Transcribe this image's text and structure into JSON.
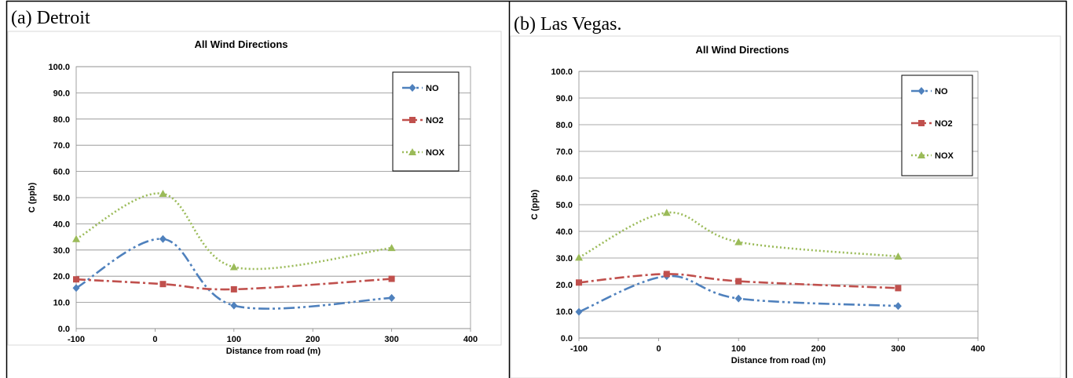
{
  "panels": [
    {
      "label": "(a) Detroit",
      "chart_data": {
        "type": "line",
        "title": "All Wind Directions",
        "xlabel": "Distance from road (m)",
        "ylabel": "C (ppb)",
        "xlim": [
          -100,
          400
        ],
        "ylim": [
          0,
          100
        ],
        "x_ticks": [
          -100,
          0,
          100,
          200,
          300,
          400
        ],
        "y_ticks": [
          "0.0",
          "10.0",
          "20.0",
          "30.0",
          "40.0",
          "50.0",
          "60.0",
          "70.0",
          "80.0",
          "90.0",
          "100.0"
        ],
        "grid": true,
        "legend_position": "top-right",
        "x": [
          -100,
          10,
          100,
          300
        ],
        "series": [
          {
            "name": "NO",
            "values": [
              15.5,
              34.2,
              8.8,
              11.7
            ],
            "color": "#4F81BD",
            "marker": "diamond",
            "dash": "dash-dot-dot"
          },
          {
            "name": "NO2",
            "values": [
              18.8,
              17.0,
              15.0,
              19.0
            ],
            "color": "#C0504D",
            "marker": "square",
            "dash": "dash-dot"
          },
          {
            "name": "NOX",
            "values": [
              34.2,
              51.5,
              23.5,
              30.8
            ],
            "color": "#9BBB59",
            "marker": "triangle",
            "dash": "dotted"
          }
        ]
      }
    },
    {
      "label": "(b) Las Vegas.",
      "chart_data": {
        "type": "line",
        "title": "All Wind Directions",
        "xlabel": "Distance from road (m)",
        "ylabel": "C (ppb)",
        "xlim": [
          -100,
          400
        ],
        "ylim": [
          0,
          100
        ],
        "x_ticks": [
          -100,
          0,
          100,
          200,
          300,
          400
        ],
        "y_ticks": [
          "0.0",
          "10.0",
          "20.0",
          "30.0",
          "40.0",
          "50.0",
          "60.0",
          "70.0",
          "80.0",
          "90.0",
          "100.0"
        ],
        "grid": true,
        "legend_position": "top-right",
        "x": [
          -100,
          10,
          100,
          300
        ],
        "series": [
          {
            "name": "NO",
            "values": [
              9.8,
              23.2,
              14.8,
              12.0
            ],
            "color": "#4F81BD",
            "marker": "diamond",
            "dash": "dash-dot-dot"
          },
          {
            "name": "NO2",
            "values": [
              20.8,
              24.0,
              21.3,
              18.7
            ],
            "color": "#C0504D",
            "marker": "square",
            "dash": "dash-dot"
          },
          {
            "name": "NOX",
            "values": [
              30.2,
              47.0,
              36.0,
              30.6
            ],
            "color": "#9BBB59",
            "marker": "triangle",
            "dash": "dotted"
          }
        ]
      }
    }
  ]
}
